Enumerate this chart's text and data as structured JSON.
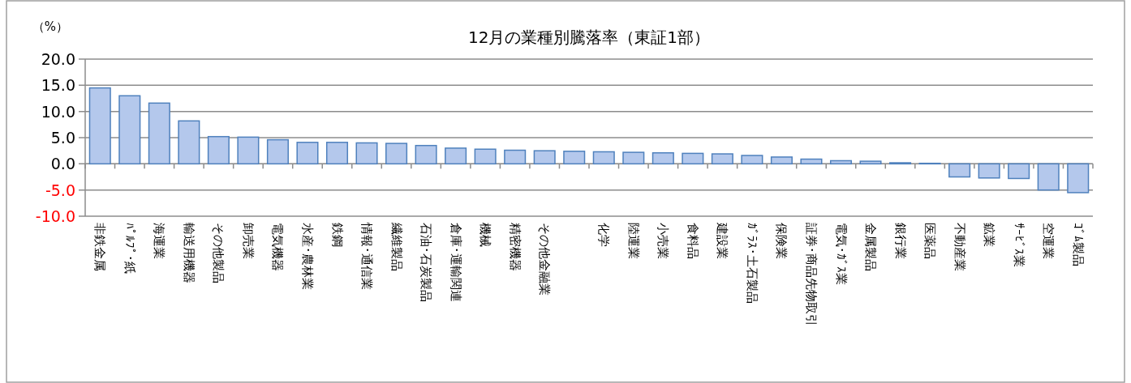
{
  "chart_data": {
    "type": "bar",
    "title": "12月の業種別騰落率（東証1部）",
    "ylabel": "（%）",
    "categories": [
      "非鉄金属",
      "ﾊﾟﾙﾌﾟ･紙",
      "海運業",
      "輸送用機器",
      "その他製品",
      "卸売業",
      "電気機器",
      "水産･農林業",
      "鉄鋼",
      "情報･通信業",
      "繊維製品",
      "石油･石炭製品",
      "倉庫･運輸関連",
      "機械",
      "精密機器",
      "その他金融業",
      null,
      "化学",
      "陸運業",
      "小売業",
      "食料品",
      "建設業",
      "ｶﾞﾗｽ･土石製品",
      "保険業",
      "証券･商品先物取引",
      "電気･ｶﾞｽ業",
      "金属製品",
      "銀行業",
      "医薬品",
      "不動産業",
      "鉱業",
      "ｻｰﾋﾞｽ業",
      "空運業",
      "ｺﾞﾑ製品"
    ],
    "values": [
      14.5,
      13.0,
      11.6,
      8.2,
      5.2,
      5.1,
      4.6,
      4.1,
      4.1,
      4.0,
      3.9,
      3.5,
      3.0,
      2.8,
      2.6,
      2.5,
      2.4,
      2.3,
      2.2,
      2.1,
      2.0,
      1.9,
      1.6,
      1.3,
      0.9,
      0.6,
      0.5,
      0.2,
      0.1,
      -2.5,
      -2.7,
      -2.8,
      -5.0,
      -5.5
    ],
    "color": "#b4c8ec",
    "ylim": [
      -10,
      20
    ],
    "yticks": [
      {
        "value": -10,
        "label": "-10.0"
      },
      {
        "value": -5,
        "label": "-5.0"
      },
      {
        "value": 0,
        "label": "0.0"
      },
      {
        "value": 5,
        "label": "5.0"
      },
      {
        "value": 10,
        "label": "10.0"
      },
      {
        "value": 15,
        "label": "15.0"
      },
      {
        "value": 20,
        "label": "20.0"
      }
    ],
    "grid": "y"
  }
}
